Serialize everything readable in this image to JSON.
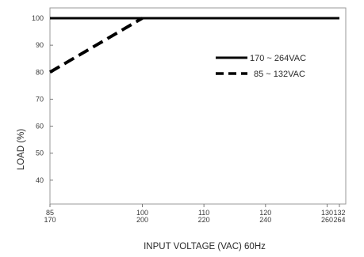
{
  "chart_data": {
    "type": "line",
    "xlabel": "INPUT VOLTAGE (VAC) 60Hz",
    "ylabel": "LOAD (%)",
    "x_ticks": [
      {
        "low": "85",
        "high": "170"
      },
      {
        "low": "100",
        "high": "200"
      },
      {
        "low": "110",
        "high": "220"
      },
      {
        "low": "120",
        "high": "240"
      },
      {
        "low": "130",
        "high": "260"
      },
      {
        "low": "132",
        "high": "264"
      }
    ],
    "y_ticks": [
      "100",
      "90",
      "80",
      "70",
      "60",
      "50",
      "40"
    ],
    "xlim": [
      85,
      132
    ],
    "ylim": [
      30,
      100
    ],
    "grid": false,
    "legend_position": "top-right",
    "series": [
      {
        "name": "170 ~ 264VAC",
        "style": "solid",
        "color": "#000000",
        "x": [
          85,
          132
        ],
        "y": [
          100,
          100
        ]
      },
      {
        "name": "85 ~ 132VAC",
        "style": "dashed",
        "color": "#000000",
        "x": [
          85,
          100
        ],
        "y": [
          80,
          100
        ]
      }
    ]
  }
}
